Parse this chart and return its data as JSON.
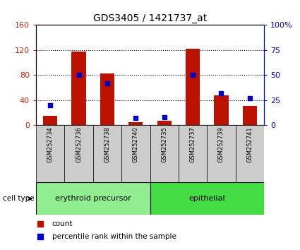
{
  "title": "GDS3405 / 1421737_at",
  "samples": [
    "GSM252734",
    "GSM252736",
    "GSM252738",
    "GSM252740",
    "GSM252735",
    "GSM252737",
    "GSM252739",
    "GSM252741"
  ],
  "counts": [
    15,
    117,
    82,
    5,
    7,
    122,
    48,
    30
  ],
  "percentile_ranks": [
    20,
    50,
    42,
    7,
    8,
    50,
    32,
    27
  ],
  "groups": [
    {
      "label": "erythroid precursor",
      "span": [
        0,
        3
      ],
      "color": "#90EE90"
    },
    {
      "label": "epithelial",
      "span": [
        4,
        7
      ],
      "color": "#44DD44"
    }
  ],
  "left_ylim": [
    0,
    160
  ],
  "right_ylim": [
    0,
    100
  ],
  "left_yticks": [
    0,
    40,
    80,
    120,
    160
  ],
  "right_yticks": [
    0,
    25,
    50,
    75,
    100
  ],
  "right_yticklabels": [
    "0",
    "25",
    "50",
    "75",
    "100%"
  ],
  "bar_color": "#BB1100",
  "dot_color": "#0000CC",
  "sample_box_color": "#CCCCCC",
  "left_axis_color": "#CC2200",
  "right_axis_color": "#0000CC",
  "cell_type_label": "cell type",
  "legend_count": "count",
  "legend_pct": "percentile rank within the sample",
  "fig_width": 4.25,
  "fig_height": 3.54,
  "dpi": 100
}
